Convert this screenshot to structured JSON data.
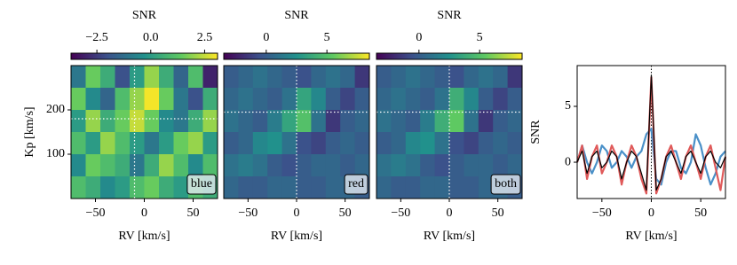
{
  "chart_data": [
    {
      "type": "heatmap",
      "annotation": "blue",
      "xlabel": "RV [km/s]",
      "ylabel": "Kp [km/s]",
      "x": [
        -67.5,
        -52.5,
        -37.5,
        -22.5,
        -7.5,
        7.5,
        22.5,
        37.5,
        52.5,
        67.5
      ],
      "y": [
        275,
        225,
        175,
        125,
        75,
        25
      ],
      "z": [
        [
          -1,
          1.5,
          0.5,
          -2,
          0,
          2,
          0.5,
          -1.5,
          1,
          -3
        ],
        [
          1.5,
          -0.5,
          -1.5,
          1,
          2,
          3,
          1.5,
          -1,
          -2,
          0.5
        ],
        [
          0,
          2,
          0.5,
          1.5,
          2.5,
          1.5,
          -0.5,
          -1,
          0.5,
          2
        ],
        [
          1,
          0,
          2,
          1,
          0,
          -1,
          0,
          1.5,
          2,
          0
        ],
        [
          -0.5,
          1.5,
          1,
          0.5,
          -1,
          0.5,
          2,
          1,
          -0.5,
          1
        ],
        [
          1,
          0.5,
          -0.5,
          0,
          1,
          1.5,
          0.5,
          0,
          1,
          0.5
        ]
      ],
      "xlim": [
        -75,
        75
      ],
      "ylim": [
        0,
        300
      ],
      "xticks": [
        {
          "value": -50,
          "label": "−50"
        },
        0,
        50
      ],
      "yticks": [
        100,
        200
      ],
      "crosshair": [
        -10,
        180
      ],
      "colorbar": {
        "label": "SNR",
        "lim": [
          -3.7,
          3.1
        ],
        "ticks": [
          {
            "value": -2.5,
            "label": "−2.5"
          },
          {
            "value": 0,
            "label": "0.0"
          },
          2.5
        ]
      }
    },
    {
      "type": "heatmap",
      "annotation": "red",
      "xlabel": "RV [km/s]",
      "x": [
        -67.5,
        -52.5,
        -37.5,
        -22.5,
        -7.5,
        7.5,
        22.5,
        37.5,
        52.5,
        67.5
      ],
      "y": [
        275,
        225,
        175,
        125,
        75,
        25
      ],
      "z": [
        [
          0,
          0.5,
          1,
          0.5,
          0,
          -0.5,
          0.5,
          1,
          0.5,
          -1.5
        ],
        [
          0.5,
          1,
          0.5,
          0,
          1,
          3.5,
          2,
          0,
          -1,
          0
        ],
        [
          1,
          0.5,
          0,
          1.5,
          3.5,
          5,
          1,
          -1.5,
          0,
          0.5
        ],
        [
          0,
          0.5,
          2,
          2.5,
          1,
          -0.5,
          -1,
          0,
          0.5,
          0
        ],
        [
          1,
          1.5,
          1,
          0,
          -0.5,
          0,
          0.5,
          0.5,
          0,
          0.5
        ],
        [
          0.5,
          0,
          0,
          0.5,
          0.5,
          0,
          0,
          0.5,
          0.5,
          0
        ]
      ],
      "xlim": [
        -75,
        75
      ],
      "ylim": [
        0,
        300
      ],
      "xticks": [
        {
          "value": -50,
          "label": "−50"
        },
        0,
        50
      ],
      "crosshair": [
        0,
        195
      ],
      "colorbar": {
        "label": "SNR",
        "lim": [
          -3.5,
          8.5
        ],
        "ticks": [
          0,
          5
        ]
      }
    },
    {
      "type": "heatmap",
      "annotation": "both",
      "xlabel": "RV [km/s]",
      "x": [
        -67.5,
        -52.5,
        -37.5,
        -22.5,
        -7.5,
        7.5,
        22.5,
        37.5,
        52.5,
        67.5
      ],
      "y": [
        275,
        225,
        175,
        125,
        75,
        25
      ],
      "z": [
        [
          0,
          0.5,
          1,
          0.5,
          0,
          -0.5,
          0.5,
          1,
          0.5,
          -1.5
        ],
        [
          0.5,
          1,
          0.5,
          0,
          1,
          4,
          2,
          0,
          -1,
          0
        ],
        [
          1,
          0.5,
          0,
          1.5,
          4,
          5.5,
          1,
          -1.5,
          0,
          0.5
        ],
        [
          0,
          0.5,
          2,
          2.5,
          1,
          -0.5,
          -1,
          0,
          0.5,
          0
        ],
        [
          1,
          1.5,
          1,
          0,
          -0.5,
          0,
          0.5,
          0.5,
          0,
          0.5
        ],
        [
          0.5,
          0,
          0,
          0.5,
          0.5,
          0,
          0,
          0.5,
          0.5,
          0
        ]
      ],
      "xlim": [
        -75,
        75
      ],
      "ylim": [
        0,
        300
      ],
      "xticks": [
        {
          "value": -50,
          "label": "−50"
        },
        0,
        50
      ],
      "crosshair": [
        0,
        195
      ],
      "colorbar": {
        "label": "SNR",
        "lim": [
          -3.5,
          8.5
        ],
        "ticks": [
          0,
          5
        ]
      }
    },
    {
      "type": "line",
      "xlabel": "RV [km/s]",
      "ylabel": "SNR",
      "x": [
        -75,
        -70,
        -65,
        -60,
        -55,
        -50,
        -45,
        -40,
        -35,
        -30,
        -25,
        -20,
        -15,
        -10,
        -5,
        0,
        5,
        10,
        15,
        20,
        25,
        30,
        35,
        40,
        45,
        50,
        55,
        60,
        65,
        70,
        75
      ],
      "series": [
        {
          "name": "blue",
          "color": "#4a90c8",
          "values": [
            0,
            1.5,
            0,
            -1,
            0,
            1.5,
            1,
            -0.5,
            0,
            1,
            0.5,
            -0.5,
            0.5,
            1,
            2.5,
            3,
            -1.5,
            -2,
            0,
            1,
            1,
            -0.5,
            -1,
            0,
            2.5,
            1.5,
            -0.5,
            -2,
            -1,
            0.5,
            1
          ]
        },
        {
          "name": "red",
          "color": "#e05a5a",
          "values": [
            0,
            1.5,
            -1.5,
            0.5,
            1.5,
            -1,
            0,
            1.5,
            0.5,
            -2,
            0,
            1.5,
            0.5,
            -1.5,
            -2.8,
            7.6,
            -2.8,
            -1.5,
            0.5,
            1.5,
            0,
            -1.5,
            0.5,
            1.5,
            0,
            -1.5,
            0.5,
            1.5,
            -0.5,
            -2.5,
            0.5
          ]
        },
        {
          "name": "both",
          "color": "#000000",
          "values": [
            0,
            1,
            -1,
            0.5,
            1,
            -0.5,
            0,
            1,
            0.5,
            -1.5,
            0,
            1,
            0.5,
            -1,
            -2.5,
            7.8,
            -2.5,
            -1.5,
            0.5,
            1,
            0,
            -1,
            0.5,
            1,
            0,
            -1,
            0.5,
            1,
            0,
            -0.5,
            0.5
          ]
        }
      ],
      "xlim": [
        -75,
        75
      ],
      "ylim": [
        -3.25,
        8.65
      ],
      "xticks": [
        {
          "value": -50,
          "label": "−50"
        },
        0,
        50
      ],
      "yticks": [
        0,
        5
      ],
      "vline": 0
    }
  ]
}
